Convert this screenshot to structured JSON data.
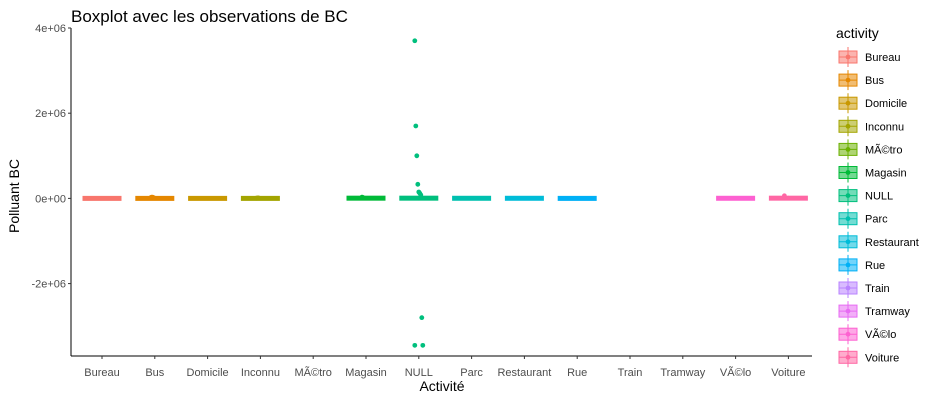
{
  "chart_data": {
    "type": "boxplot",
    "title": "Boxplot avec les observations de BC",
    "xlabel": "Activité",
    "ylabel": "Polluant BC",
    "ylim": [
      -3700000,
      4000000
    ],
    "y_ticks": [
      {
        "value": 4000000,
        "label": "4e+06"
      },
      {
        "value": 2000000,
        "label": "2e+06"
      },
      {
        "value": 0,
        "label": "0e+00"
      },
      {
        "value": -2000000,
        "label": "-2e+06"
      }
    ],
    "grid": false,
    "legend_title": "activity",
    "legend_position": "right",
    "categories": [
      "Bureau",
      "Bus",
      "Domicile",
      "Inconnu",
      "MÃ©tro",
      "Magasin",
      "NULL",
      "Parc",
      "Restaurant",
      "Rue",
      "Train",
      "Tramway",
      "VÃ©lo",
      "Voiture"
    ],
    "colors": [
      "#F8766D",
      "#E58700",
      "#C99800",
      "#A3A500",
      "#6BB100",
      "#00BA38",
      "#00BF7D",
      "#00C0AF",
      "#00BCD8",
      "#00B0F6",
      "#B983FF",
      "#E76BF3",
      "#FD61D1",
      "#FF67A4"
    ],
    "series": [
      {
        "name": "Bureau",
        "q1": -15000,
        "median": 0,
        "q3": 15000,
        "whisker_low": -30000,
        "whisker_high": 30000,
        "outliers": [],
        "has_data": true
      },
      {
        "name": "Bus",
        "q1": -5000,
        "median": 0,
        "q3": 5000,
        "whisker_low": -15000,
        "whisker_high": 15000,
        "outliers": [
          20000,
          30000,
          25000,
          15000
        ],
        "has_data": true
      },
      {
        "name": "Domicile",
        "q1": -10000,
        "median": 0,
        "q3": 10000,
        "whisker_low": -40000,
        "whisker_high": 40000,
        "outliers": [],
        "has_data": true
      },
      {
        "name": "Inconnu",
        "q1": -3000,
        "median": 0,
        "q3": 3000,
        "whisker_low": -10000,
        "whisker_high": 10000,
        "outliers": [
          5000,
          8000,
          12000
        ],
        "has_data": true
      },
      {
        "name": "MÃ©tro",
        "has_data": false
      },
      {
        "name": "Magasin",
        "q1": -5000,
        "median": 0,
        "q3": 15000,
        "whisker_low": -30000,
        "whisker_high": 50000,
        "outliers": [
          30000,
          20000
        ],
        "has_data": true
      },
      {
        "name": "NULL",
        "q1": -10000,
        "median": 0,
        "q3": 20000,
        "whisker_low": -50000,
        "whisker_high": 60000,
        "outliers": [
          3700000,
          1700000,
          1000000,
          330000,
          150000,
          120000,
          80000,
          -2800000,
          -3450000,
          -3450000
        ],
        "has_data": true
      },
      {
        "name": "Parc",
        "q1": -5000,
        "median": 0,
        "q3": 10000,
        "whisker_low": -20000,
        "whisker_high": 30000,
        "outliers": [],
        "has_data": true
      },
      {
        "name": "Restaurant",
        "q1": -5000,
        "median": 0,
        "q3": 10000,
        "whisker_low": -20000,
        "whisker_high": 30000,
        "outliers": [],
        "has_data": true
      },
      {
        "name": "Rue",
        "q1": -10000,
        "median": 0,
        "q3": 10000,
        "whisker_low": -40000,
        "whisker_high": 40000,
        "outliers": [],
        "has_data": true
      },
      {
        "name": "Train",
        "has_data": false
      },
      {
        "name": "Tramway",
        "has_data": false
      },
      {
        "name": "VÃ©lo",
        "q1": -5000,
        "median": 0,
        "q3": 10000,
        "whisker_low": -20000,
        "whisker_high": 30000,
        "outliers": [],
        "has_data": true
      },
      {
        "name": "Voiture",
        "q1": -5000,
        "median": 0,
        "q3": 15000,
        "whisker_low": -30000,
        "whisker_high": 60000,
        "outliers": [
          60000
        ],
        "has_data": true
      }
    ]
  }
}
